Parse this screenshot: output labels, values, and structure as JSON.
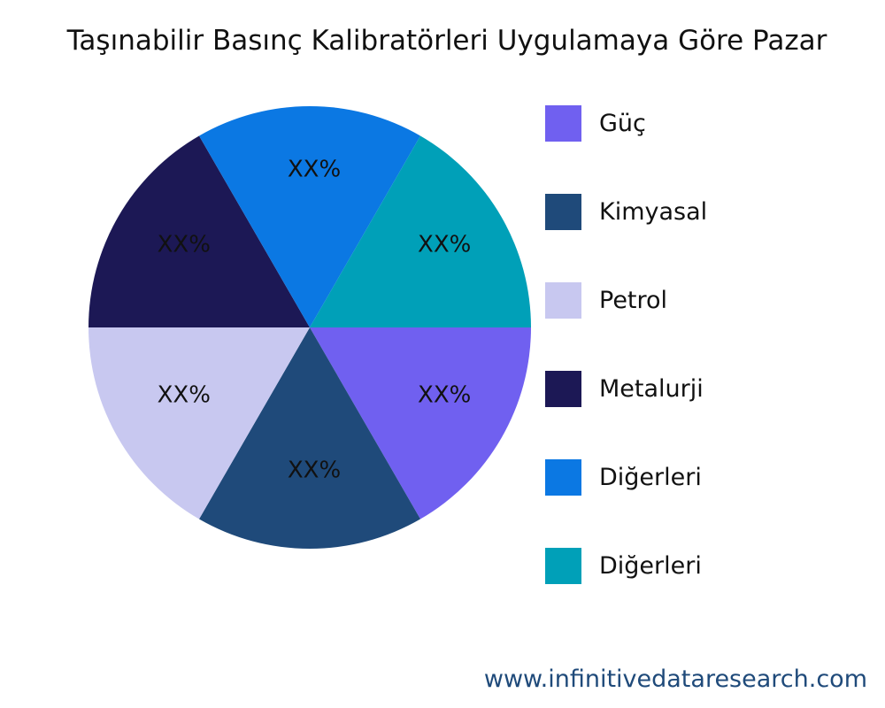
{
  "chart_data": {
    "type": "pie",
    "title": "Taşınabilir Basınç Kalibratörleri Uygulamaya Göre Pazar",
    "slices": [
      {
        "name": "Güç",
        "value": 1,
        "label": "XX%",
        "color": "#7060f0"
      },
      {
        "name": "Kimyasal",
        "value": 1,
        "label": "XX%",
        "color": "#1f4a7a"
      },
      {
        "name": "Petrol",
        "value": 1,
        "label": "XX%",
        "color": "#c8c8f0"
      },
      {
        "name": "Metalurji",
        "value": 1,
        "label": "XX%",
        "color": "#1c1855"
      },
      {
        "name": "Diğerleri",
        "value": 1,
        "label": "XX%",
        "color": "#0b78e3"
      },
      {
        "name": "Diğerleri",
        "value": 1,
        "label": "XX%",
        "color": "#00a0b8"
      }
    ],
    "legend_position": "right"
  },
  "footer": "www.infinitivedataresearch.com"
}
